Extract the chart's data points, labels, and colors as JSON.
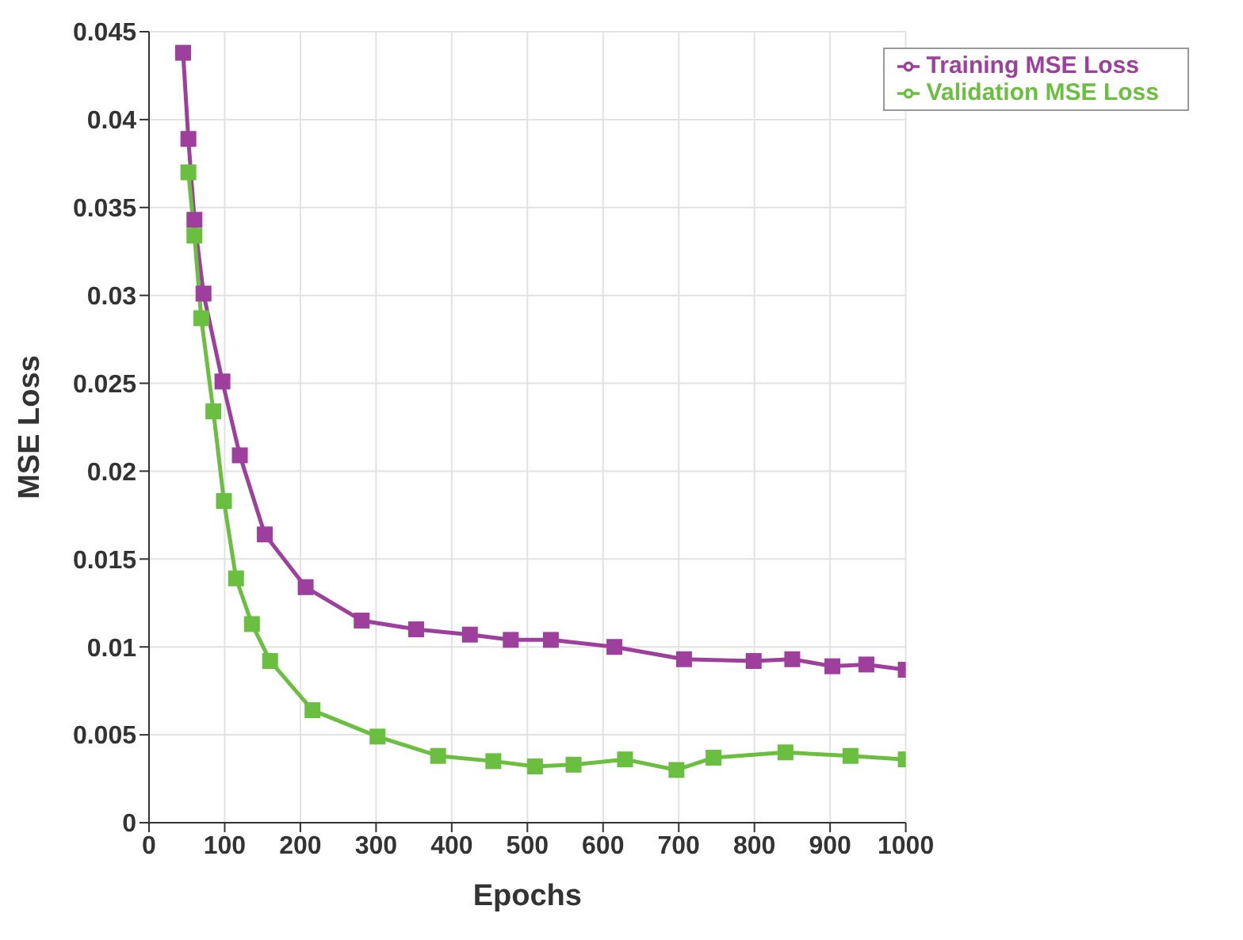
{
  "chart_data": {
    "type": "line",
    "xlabel": "Epochs",
    "ylabel": "MSE Loss",
    "xlim": [
      0,
      1000
    ],
    "xticks": [
      0,
      100,
      200,
      300,
      400,
      500,
      600,
      700,
      800,
      900,
      1000
    ],
    "ylim": [
      0,
      0.045
    ],
    "yticks": [
      0,
      0.005,
      0.01,
      0.015,
      0.02,
      0.025,
      0.03,
      0.035,
      0.04,
      0.045
    ],
    "grid": true,
    "legend": "top right",
    "marker": "square",
    "line_style": "solid",
    "series": [
      {
        "name": "Training MSE Loss",
        "color": "#9e3f9e",
        "x": [
          45,
          52,
          60,
          72,
          97,
          120,
          153,
          207,
          281,
          353,
          424,
          478,
          531,
          615,
          707,
          799,
          850,
          903,
          948,
          1000
        ],
        "values": [
          0.0438,
          0.0389,
          0.0343,
          0.0301,
          0.0251,
          0.0209,
          0.0164,
          0.0134,
          0.0115,
          0.011,
          0.0107,
          0.0104,
          0.0104,
          0.01,
          0.0093,
          0.0092,
          0.0093,
          0.0089,
          0.009,
          0.0087
        ]
      },
      {
        "name": "Validation MSE Loss",
        "color": "#6abf40",
        "x": [
          52,
          60,
          69,
          85,
          99,
          115,
          136,
          160,
          216,
          302,
          382,
          455,
          510,
          561,
          629,
          697,
          746,
          841,
          927,
          1000
        ],
        "values": [
          0.037,
          0.0334,
          0.0287,
          0.0234,
          0.0183,
          0.0139,
          0.0113,
          0.0092,
          0.0064,
          0.0049,
          0.0038,
          0.0035,
          0.0032,
          0.0033,
          0.0036,
          0.003,
          0.0037,
          0.004,
          0.0038,
          0.0036
        ]
      }
    ]
  }
}
